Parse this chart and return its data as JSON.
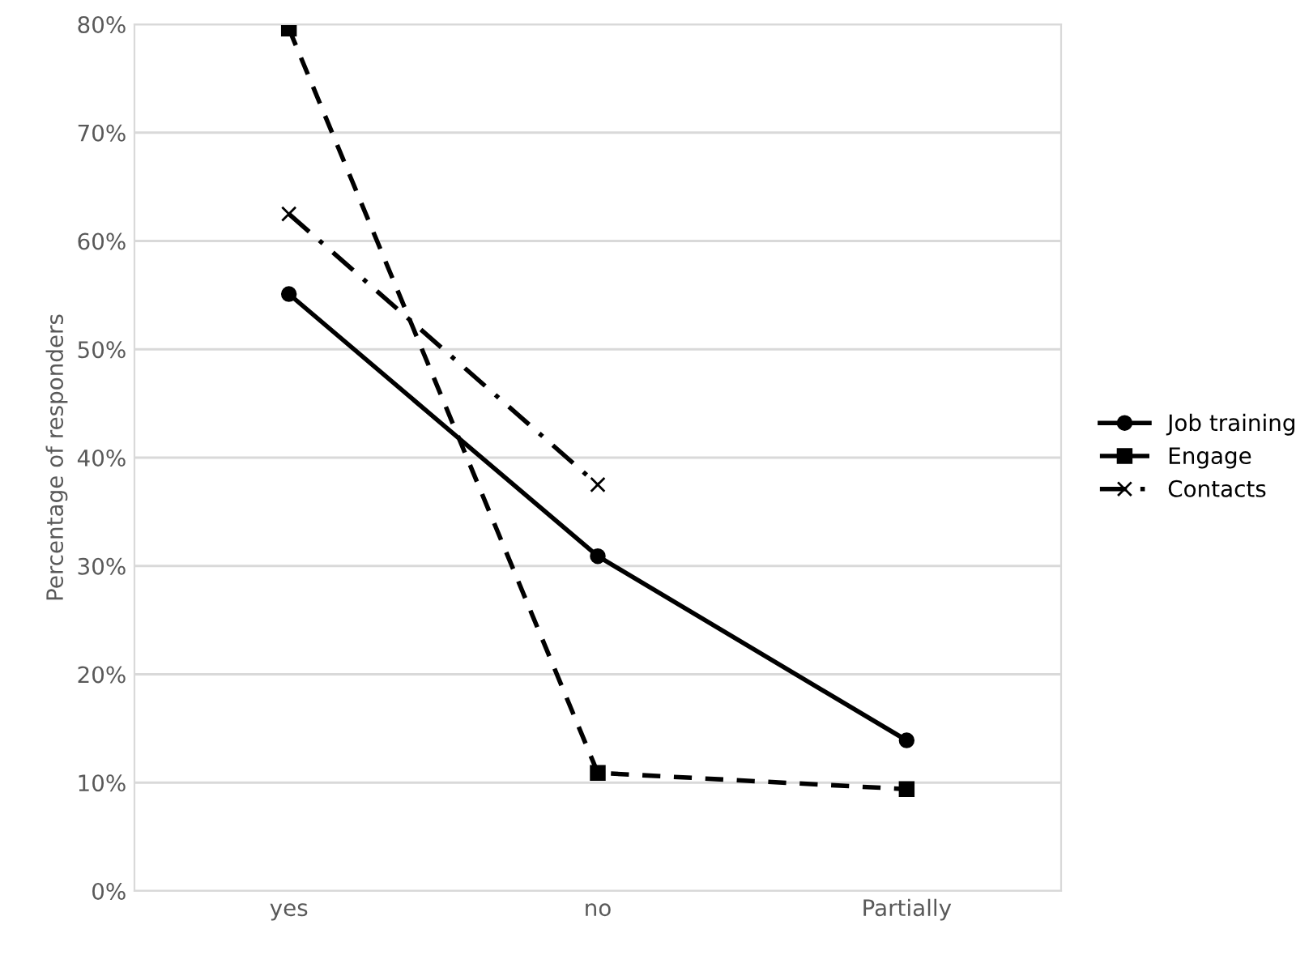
{
  "chart_data": {
    "type": "line",
    "ylabel": "Percentage of responders",
    "categories": [
      "yes",
      "no",
      "Partially"
    ],
    "series": [
      {
        "name": "Job training",
        "color": "#000000",
        "values": [
          55.1,
          30.9,
          13.9
        ],
        "marker": "circle",
        "line_style": "solid"
      },
      {
        "name": "Engage",
        "color": "#000000",
        "values": [
          79.6,
          10.9,
          9.4
        ],
        "marker": "square",
        "line_style": "dashed"
      },
      {
        "name": "Contacts",
        "color": "#000000",
        "values": [
          62.5,
          37.5,
          null
        ],
        "marker": "cross",
        "line_style": "dashdot"
      }
    ],
    "ylim": [
      0,
      80
    ],
    "yticks": [
      {
        "value": 0,
        "label": "0%"
      },
      {
        "value": 10,
        "label": "10%"
      },
      {
        "value": 20,
        "label": "20%"
      },
      {
        "value": 30,
        "label": "30%"
      },
      {
        "value": 40,
        "label": "40%"
      },
      {
        "value": 50,
        "label": "50%"
      },
      {
        "value": 60,
        "label": "60%"
      },
      {
        "value": 70,
        "label": "70%"
      },
      {
        "value": 80,
        "label": "80%"
      }
    ],
    "grid": "y",
    "legend": "right"
  }
}
